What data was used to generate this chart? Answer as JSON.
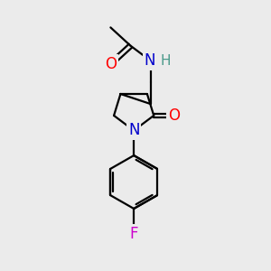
{
  "background_color": "#ebebeb",
  "bond_color": "#000000",
  "atom_colors": {
    "O": "#ff0000",
    "N": "#0000cc",
    "F": "#cc00cc",
    "H": "#4a9a8a",
    "C": "#000000"
  },
  "bond_width": 1.6,
  "font_size": 12,
  "fig_width": 3.0,
  "fig_height": 3.0,
  "xlim": [
    -1.8,
    2.2
  ],
  "ylim": [
    -4.5,
    3.5
  ]
}
